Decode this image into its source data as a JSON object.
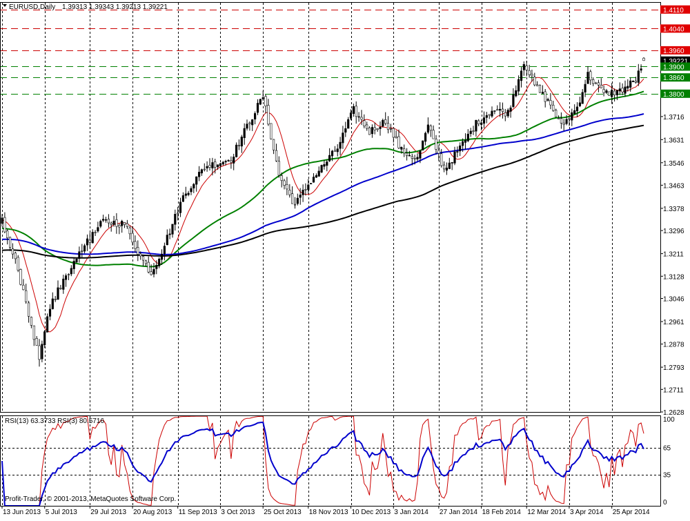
{
  "header": {
    "symbol": "EURUSD,Daily",
    "ohlc": "1.39313 1.39343 1.39213 1.39221",
    "rsi_label": "RSI(13) 63.3733  RSI(3) 80.5716",
    "copyright": "Profit-Trader, © 2001-2013, MetaQuotes Software Corp."
  },
  "colors": {
    "bull_candle": "#000000",
    "bear_candle": "#ffffff",
    "ma_fast": "#cc0000",
    "ma_green": "#008000",
    "ma_blue": "#0000cc",
    "ma_black": "#000000",
    "resistance": "#cc0000",
    "support": "#008000",
    "rsi13": "#0000cc",
    "rsi3": "#cc0000"
  },
  "chart_data": [
    {
      "type": "candlestick",
      "title": "EURUSD,Daily",
      "x_ticks": [
        "13 Jun 2013",
        "5 Jul 2013",
        "29 Jul 2013",
        "20 Aug 2013",
        "11 Sep 2013",
        "3 Oct 2013",
        "25 Oct 2013",
        "18 Nov 2013",
        "10 Dec 2013",
        "3 Jan 2014",
        "27 Jan 2014",
        "18 Feb 2014",
        "12 Mar 2014",
        "3 Apr 2014",
        "25 Apr 2014"
      ],
      "y_ticks": [
        1.4111,
        1.404,
        1.396,
        1.3922,
        1.39,
        1.386,
        1.38,
        1.3716,
        1.3631,
        1.3546,
        1.3463,
        1.3378,
        1.3296,
        1.3211,
        1.3128,
        1.3046,
        1.2961,
        1.2878,
        1.2793,
        1.2711,
        1.2628
      ],
      "ylim": [
        1.2628,
        1.4135
      ],
      "price_levels": [
        {
          "label": "1.4110",
          "value": 1.411,
          "kind": "resistance"
        },
        {
          "label": "1.4040",
          "value": 1.404,
          "kind": "resistance"
        },
        {
          "label": "1.3960",
          "value": 1.396,
          "kind": "resistance"
        },
        {
          "label": "1.39221",
          "value": 1.39221,
          "kind": "current"
        },
        {
          "label": "1.3900",
          "value": 1.39,
          "kind": "support"
        },
        {
          "label": "1.3860",
          "value": 1.386,
          "kind": "support"
        },
        {
          "label": "1.3800",
          "value": 1.38,
          "kind": "support"
        }
      ],
      "close_anchors": [
        [
          0,
          1.333
        ],
        [
          6,
          1.315
        ],
        [
          14,
          1.282
        ],
        [
          18,
          1.302
        ],
        [
          28,
          1.32
        ],
        [
          38,
          1.333
        ],
        [
          46,
          1.332
        ],
        [
          52,
          1.32
        ],
        [
          56,
          1.314
        ],
        [
          60,
          1.322
        ],
        [
          68,
          1.342
        ],
        [
          76,
          1.353
        ],
        [
          86,
          1.356
        ],
        [
          92,
          1.368
        ],
        [
          98,
          1.379
        ],
        [
          104,
          1.35
        ],
        [
          110,
          1.339
        ],
        [
          116,
          1.348
        ],
        [
          126,
          1.36
        ],
        [
          132,
          1.374
        ],
        [
          138,
          1.366
        ],
        [
          144,
          1.37
        ],
        [
          150,
          1.359
        ],
        [
          156,
          1.356
        ],
        [
          160,
          1.368
        ],
        [
          166,
          1.352
        ],
        [
          172,
          1.36
        ],
        [
          178,
          1.369
        ],
        [
          184,
          1.374
        ],
        [
          190,
          1.373
        ],
        [
          196,
          1.392
        ],
        [
          200,
          1.383
        ],
        [
          206,
          1.376
        ],
        [
          210,
          1.368
        ],
        [
          216,
          1.375
        ],
        [
          220,
          1.387
        ],
        [
          226,
          1.38
        ],
        [
          232,
          1.381
        ],
        [
          238,
          1.385
        ],
        [
          241,
          1.3922
        ]
      ],
      "sma_series": [
        {
          "period": 9,
          "color_key": "ma_fast"
        },
        {
          "period": 50,
          "color_key": "ma_green"
        },
        {
          "period": 100,
          "color_key": "ma_blue"
        },
        {
          "period": 150,
          "color_key": "ma_black"
        }
      ]
    },
    {
      "type": "line",
      "title": "RSI(13) 63.3733  RSI(3) 80.5716",
      "series": [
        {
          "name": "RSI(13)",
          "last": 63.3733
        },
        {
          "name": "RSI(3)",
          "last": 80.5716
        }
      ],
      "y_ticks": [
        100,
        65,
        35,
        0
      ],
      "levels": [
        65,
        35
      ],
      "ylim": [
        0,
        100
      ]
    }
  ]
}
